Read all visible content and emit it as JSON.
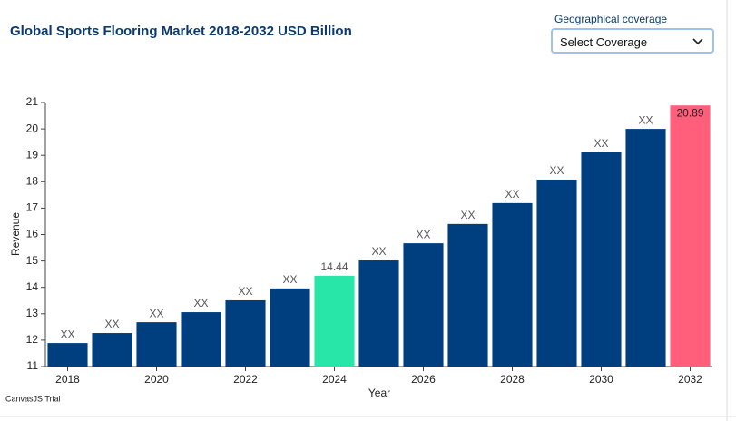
{
  "chart_data": {
    "type": "bar",
    "title": "Global Sports Flooring Market 2018-2032 USD Billion",
    "x_label": "Year",
    "y_label": "Revenue",
    "categories": [
      "2018",
      null,
      "2020",
      null,
      "2022",
      null,
      "2024",
      null,
      "2026",
      null,
      "2028",
      null,
      "2030",
      null,
      "2032"
    ],
    "values": [
      11.89,
      12.27,
      12.68,
      13.06,
      13.51,
      13.96,
      14.44,
      15.02,
      15.67,
      16.4,
      17.19,
      18.08,
      19.11,
      20.0,
      20.89
    ],
    "value_labels": [
      "XX",
      "XX",
      "XX",
      "XX",
      "XX",
      "XX",
      "14.44",
      "XX",
      "XX",
      "XX",
      "XX",
      "XX",
      "XX",
      "XX",
      "20.89"
    ],
    "colors": [
      "#003f7f",
      "#003f7f",
      "#003f7f",
      "#003f7f",
      "#003f7f",
      "#003f7f",
      "#28e5a8",
      "#003f7f",
      "#003f7f",
      "#003f7f",
      "#003f7f",
      "#003f7f",
      "#003f7f",
      "#003f7f",
      "#ff5f7a"
    ],
    "ylim": [
      11,
      21
    ],
    "yticks": [
      11,
      12,
      13,
      14,
      15,
      16,
      17,
      18,
      19,
      20,
      21
    ],
    "grid": false
  },
  "filter": {
    "label": "Geographical coverage",
    "selected": "Select Coverage"
  },
  "watermark": "CanvasJS Trial"
}
